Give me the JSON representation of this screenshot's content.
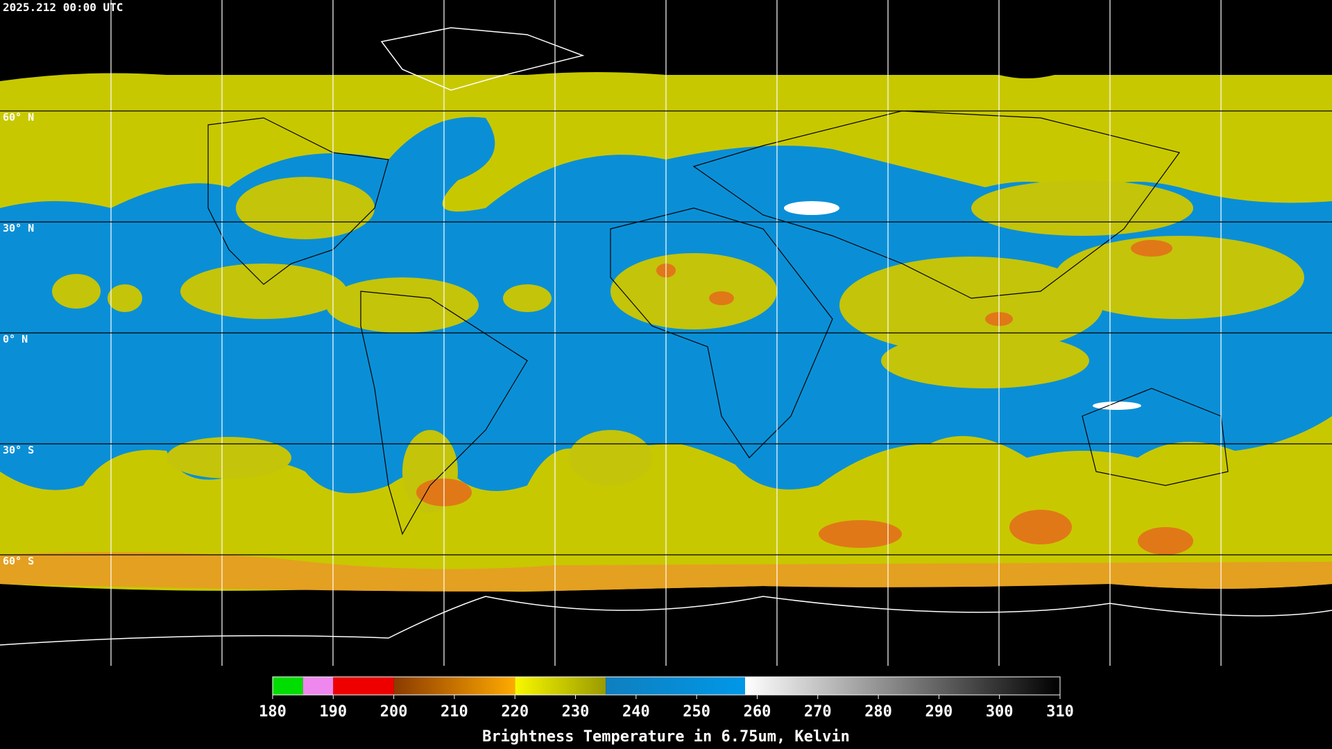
{
  "header": {
    "title": "2025.212 00:00 UTC"
  },
  "map": {
    "latitudes": [
      {
        "value": 60,
        "label": "60° N"
      },
      {
        "value": 30,
        "label": "30° N"
      },
      {
        "value": 0,
        "label": "0° N"
      },
      {
        "value": -30,
        "label": "30° S"
      },
      {
        "value": -60,
        "label": "60° S"
      }
    ],
    "longitudes": [
      -150,
      -120,
      -90,
      -60,
      -30,
      0,
      30,
      60,
      90,
      120,
      150
    ]
  },
  "colorbar": {
    "label": "Brightness Temperature in 6.75um, Kelvin",
    "range": [
      180,
      310
    ],
    "ticks": [
      180,
      190,
      200,
      210,
      220,
      230,
      240,
      250,
      260,
      270,
      280,
      290,
      300,
      310
    ],
    "segments": [
      {
        "from": 180,
        "to": 185,
        "colors": [
          "#00dd00",
          "#00dd00"
        ]
      },
      {
        "from": 185,
        "to": 190,
        "colors": [
          "#ee88ee",
          "#ee88ee"
        ]
      },
      {
        "from": 190,
        "to": 200,
        "colors": [
          "#ee0000",
          "#ee0000"
        ]
      },
      {
        "from": 200,
        "to": 220,
        "colors": [
          "#8b3a00",
          "#ffaa00"
        ]
      },
      {
        "from": 220,
        "to": 235,
        "colors": [
          "#f8f800",
          "#9a9a00"
        ]
      },
      {
        "from": 235,
        "to": 258,
        "colors": [
          "#0f7fbf",
          "#0098e8"
        ]
      },
      {
        "from": 258,
        "to": 310,
        "colors": [
          "#ffffff",
          "#000000"
        ]
      }
    ]
  }
}
